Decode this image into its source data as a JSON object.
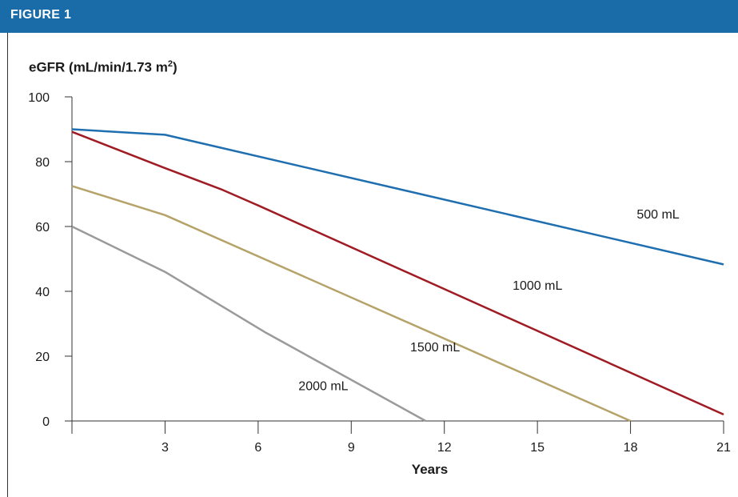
{
  "header": {
    "figure_label": "FIGURE 1"
  },
  "chart_data": {
    "type": "line",
    "title": "",
    "ylabel_prefix": "eGFR (mL/min/1.73 m",
    "ylabel_sup": "2",
    "ylabel_suffix": ")",
    "xlabel": "Years",
    "xlim": [
      0,
      21
    ],
    "ylim": [
      0,
      100
    ],
    "x_ticks": [
      3,
      6,
      9,
      12,
      15,
      18,
      21
    ],
    "y_ticks": [
      0,
      20,
      40,
      60,
      80,
      100
    ],
    "grid": false,
    "series": [
      {
        "name": "500 mL",
        "color": "#1f6fb0",
        "points": [
          [
            0,
            90
          ],
          [
            3,
            88.3
          ],
          [
            21,
            48.3
          ]
        ]
      },
      {
        "name": "1000 mL",
        "color": "#a01c24",
        "points": [
          [
            0,
            89.2
          ],
          [
            3,
            78
          ],
          [
            4.8,
            71.5
          ],
          [
            6,
            66.5
          ],
          [
            21,
            2
          ]
        ]
      },
      {
        "name": "1500 mL",
        "color": "#b5a36a",
        "points": [
          [
            0,
            72.5
          ],
          [
            3,
            63.5
          ],
          [
            18,
            0
          ]
        ]
      },
      {
        "name": "2000 mL",
        "color": "#9a9a9a",
        "points": [
          [
            0,
            60
          ],
          [
            3,
            46
          ],
          [
            6.2,
            27.5
          ],
          [
            11.4,
            0
          ]
        ]
      }
    ],
    "annotations": [
      {
        "text": "500 mL",
        "x": 18.2,
        "y": 62.5
      },
      {
        "text": "1000 mL",
        "x": 14.2,
        "y": 40.5
      },
      {
        "text": "1500 mL",
        "x": 10.9,
        "y": 21.5
      },
      {
        "text": "2000 mL",
        "x": 7.3,
        "y": 9.5
      }
    ]
  }
}
